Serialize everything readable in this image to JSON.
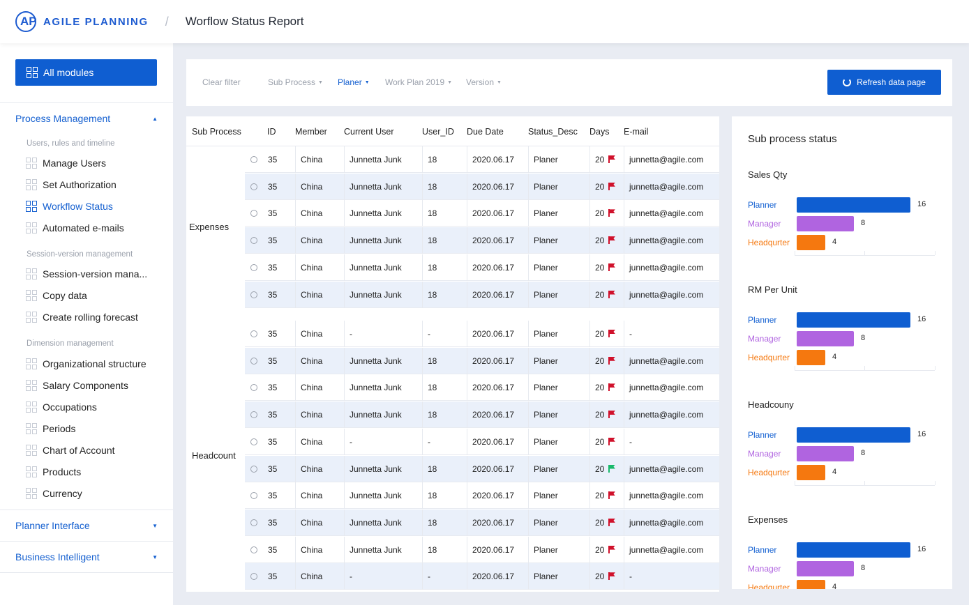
{
  "header": {
    "brand": "AGILE PLANNING",
    "separator": "/",
    "title": "Worflow Status Report"
  },
  "sidebar": {
    "all_modules": "All modules",
    "groups": [
      {
        "label": "Process Management",
        "expanded": true
      },
      {
        "label": "Planner Interface",
        "expanded": false
      },
      {
        "label": "Business Intelligent",
        "expanded": false
      }
    ],
    "sections": [
      {
        "label": "Users, rules and timeline",
        "items": [
          "Manage Users",
          "Set Authorization",
          "Workflow Status",
          "Automated e-mails"
        ]
      },
      {
        "label": "Session-version management",
        "items": [
          "Session-version mana...",
          "Copy data",
          "Create rolling forecast"
        ]
      },
      {
        "label": "Dimension management",
        "items": [
          "Organizational structure",
          "Salary Components",
          "Occupations",
          "Periods",
          "Chart of Account",
          "Products",
          "Currency"
        ]
      }
    ],
    "active_item": "Workflow Status"
  },
  "filters": {
    "clear": "Clear filter",
    "items": [
      {
        "label": "Sub Process",
        "active": false
      },
      {
        "label": "Planer",
        "active": true
      },
      {
        "label": "Work Plan 2019",
        "active": false
      },
      {
        "label": "Version",
        "active": false
      }
    ],
    "refresh": "Refresh data page"
  },
  "table": {
    "columns": [
      "Sub Process",
      "ID",
      "Member",
      "Current User",
      "User_ID",
      "Due Date",
      "Status_Desc",
      "Days",
      "E-mail"
    ],
    "groups": [
      {
        "name": "Expenses",
        "rows": [
          {
            "id": "35",
            "member": "China",
            "user": "Junnetta Junk",
            "user_id": "18",
            "due": "2020.06.17",
            "status": "Planer",
            "days": "20",
            "flag": "red",
            "email": "junnetta@agile.com"
          },
          {
            "id": "35",
            "member": "China",
            "user": "Junnetta Junk",
            "user_id": "18",
            "due": "2020.06.17",
            "status": "Planer",
            "days": "20",
            "flag": "red",
            "email": "junnetta@agile.com"
          },
          {
            "id": "35",
            "member": "China",
            "user": "Junnetta Junk",
            "user_id": "18",
            "due": "2020.06.17",
            "status": "Planer",
            "days": "20",
            "flag": "red",
            "email": "junnetta@agile.com"
          },
          {
            "id": "35",
            "member": "China",
            "user": "Junnetta Junk",
            "user_id": "18",
            "due": "2020.06.17",
            "status": "Planer",
            "days": "20",
            "flag": "red",
            "email": "junnetta@agile.com"
          },
          {
            "id": "35",
            "member": "China",
            "user": "Junnetta Junk",
            "user_id": "18",
            "due": "2020.06.17",
            "status": "Planer",
            "days": "20",
            "flag": "red",
            "email": "junnetta@agile.com"
          },
          {
            "id": "35",
            "member": "China",
            "user": "Junnetta Junk",
            "user_id": "18",
            "due": "2020.06.17",
            "status": "Planer",
            "days": "20",
            "flag": "red",
            "email": "junnetta@agile.com"
          }
        ]
      },
      {
        "name": "Headcount",
        "rows": [
          {
            "id": "35",
            "member": "China",
            "user": "-",
            "user_id": "-",
            "due": "2020.06.17",
            "status": "Planer",
            "days": "20",
            "flag": "red",
            "email": "-"
          },
          {
            "id": "35",
            "member": "China",
            "user": "Junnetta Junk",
            "user_id": "18",
            "due": "2020.06.17",
            "status": "Planer",
            "days": "20",
            "flag": "red",
            "email": "junnetta@agile.com"
          },
          {
            "id": "35",
            "member": "China",
            "user": "Junnetta Junk",
            "user_id": "18",
            "due": "2020.06.17",
            "status": "Planer",
            "days": "20",
            "flag": "red",
            "email": "junnetta@agile.com"
          },
          {
            "id": "35",
            "member": "China",
            "user": "Junnetta Junk",
            "user_id": "18",
            "due": "2020.06.17",
            "status": "Planer",
            "days": "20",
            "flag": "red",
            "email": "junnetta@agile.com"
          },
          {
            "id": "35",
            "member": "China",
            "user": "-",
            "user_id": "-",
            "due": "2020.06.17",
            "status": "Planer",
            "days": "20",
            "flag": "red",
            "email": "-"
          },
          {
            "id": "35",
            "member": "China",
            "user": "Junnetta Junk",
            "user_id": "18",
            "due": "2020.06.17",
            "status": "Planer",
            "days": "20",
            "flag": "green",
            "email": "junnetta@agile.com"
          },
          {
            "id": "35",
            "member": "China",
            "user": "Junnetta Junk",
            "user_id": "18",
            "due": "2020.06.17",
            "status": "Planer",
            "days": "20",
            "flag": "red",
            "email": "junnetta@agile.com"
          },
          {
            "id": "35",
            "member": "China",
            "user": "Junnetta Junk",
            "user_id": "18",
            "due": "2020.06.17",
            "status": "Planer",
            "days": "20",
            "flag": "red",
            "email": "junnetta@agile.com"
          },
          {
            "id": "35",
            "member": "China",
            "user": "Junnetta Junk",
            "user_id": "18",
            "due": "2020.06.17",
            "status": "Planer",
            "days": "20",
            "flag": "red",
            "email": "junnetta@agile.com"
          },
          {
            "id": "35",
            "member": "China",
            "user": "-",
            "user_id": "-",
            "due": "2020.06.17",
            "status": "Planer",
            "days": "20",
            "flag": "red",
            "email": "-"
          }
        ]
      }
    ]
  },
  "chart_panel": {
    "title": "Sub process status",
    "chart_data": [
      {
        "type": "bar",
        "title": "Sales Qty",
        "categories": [
          "Planner",
          "Manager",
          "Headqurter"
        ],
        "values": [
          16,
          8,
          4
        ]
      },
      {
        "type": "bar",
        "title": "RM Per Unit",
        "categories": [
          "Planner",
          "Manager",
          "Headqurter"
        ],
        "values": [
          16,
          8,
          4
        ]
      },
      {
        "type": "bar",
        "title": "Headcouny",
        "categories": [
          "Planner",
          "Manager",
          "Headqurter"
        ],
        "values": [
          16,
          8,
          4
        ]
      },
      {
        "type": "bar",
        "title": "Expenses",
        "categories": [
          "Planner",
          "Manager",
          "Headqurter"
        ],
        "values": [
          16,
          8,
          4
        ]
      }
    ],
    "colors": {
      "Planner": "#0f5ed1",
      "Manager": "#b064e0",
      "Headqurter": "#f5780f"
    }
  },
  "colors": {
    "accent": "#0f5ed1",
    "flag_red": "#d0112b",
    "flag_green": "#18b96a",
    "row_alt": "#eaf0fa"
  },
  "icons": {
    "module": "grid-icon",
    "refresh": "refresh-icon",
    "flag": "flag-icon",
    "radio": "radio-icon"
  }
}
